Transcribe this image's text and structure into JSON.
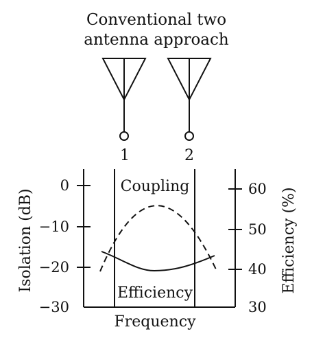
{
  "title_line1": "Conventional two",
  "title_line2": "antenna approach",
  "antennas": [
    {
      "label": "1"
    },
    {
      "label": "2"
    }
  ],
  "left_axis": {
    "label": "Isolation (dB)",
    "ticks": [
      "0",
      "−10",
      "−20",
      "−30"
    ]
  },
  "right_axis": {
    "label": "Efficiency (%)",
    "ticks": [
      "60",
      "50",
      "40",
      "30"
    ]
  },
  "x_axis": {
    "label": "Frequency"
  },
  "curves": {
    "coupling_label": "Coupling",
    "efficiency_label": "Efficiency"
  }
}
